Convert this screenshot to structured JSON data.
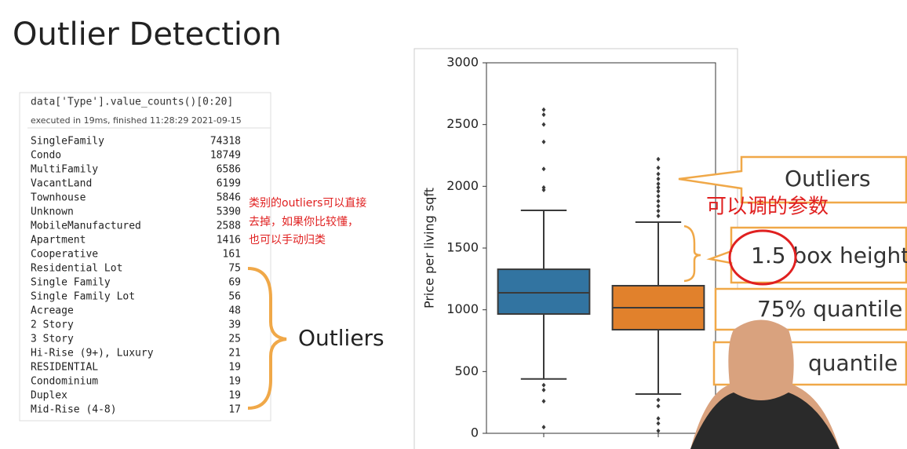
{
  "title": "Outlier Detection",
  "code": {
    "input": "data['Type'].value_counts()[0:20]",
    "status": "executed in 19ms, finished 11:28:29 2021-09-15"
  },
  "table": {
    "rows": [
      [
        "SingleFamily",
        74318
      ],
      [
        "Condo",
        18749
      ],
      [
        "MultiFamily",
        6586
      ],
      [
        "VacantLand",
        6199
      ],
      [
        "Townhouse",
        5846
      ],
      [
        "Unknown",
        5390
      ],
      [
        "MobileManufactured",
        2588
      ],
      [
        "Apartment",
        1416
      ],
      [
        "Cooperative",
        161
      ],
      [
        "Residential Lot",
        75
      ],
      [
        "Single Family",
        69
      ],
      [
        "Single Family Lot",
        56
      ],
      [
        "Acreage",
        48
      ],
      [
        "2 Story",
        39
      ],
      [
        "3 Story",
        25
      ],
      [
        "Hi-Rise (9+), Luxury",
        21
      ],
      [
        "RESIDENTIAL",
        19
      ],
      [
        "Condominium",
        19
      ],
      [
        "Duplex",
        19
      ],
      [
        "Mid-Rise (4-8)",
        17
      ]
    ]
  },
  "annotations": {
    "red_note": [
      "类别的outliers可以直接",
      "去掉，如果你比较懂，",
      "也可以手动归类"
    ],
    "brace_label": "Outliers",
    "red_params": "可以调的参数",
    "callouts": [
      "Outliers",
      "1.5 box height",
      "75% quantile",
      "quantile"
    ]
  },
  "chart_data": {
    "type": "box",
    "ylabel": "Price per living sqft",
    "categories": [
      null,
      null
    ],
    "ylim": [
      0,
      3000
    ],
    "yticks": [
      0,
      500,
      1000,
      1500,
      2000,
      2500,
      3000
    ],
    "boxes": [
      {
        "color": "#3274a1",
        "whisker_low": 440,
        "q1": 966,
        "median": 1138,
        "q3": 1328,
        "whisker_high": 1805,
        "outliers": [
          2620,
          2580,
          2500,
          2360,
          2140,
          1990,
          1970,
          390,
          350,
          260,
          50
        ]
      },
      {
        "color": "#e1812c",
        "whisker_low": 318,
        "q1": 839,
        "median": 1017,
        "q3": 1195,
        "whisker_high": 1710,
        "outliers": [
          2220,
          2150,
          2100,
          2060,
          2020,
          1990,
          1960,
          1920,
          1880,
          1840,
          1800,
          1760,
          270,
          220,
          120,
          80,
          20
        ]
      }
    ]
  }
}
